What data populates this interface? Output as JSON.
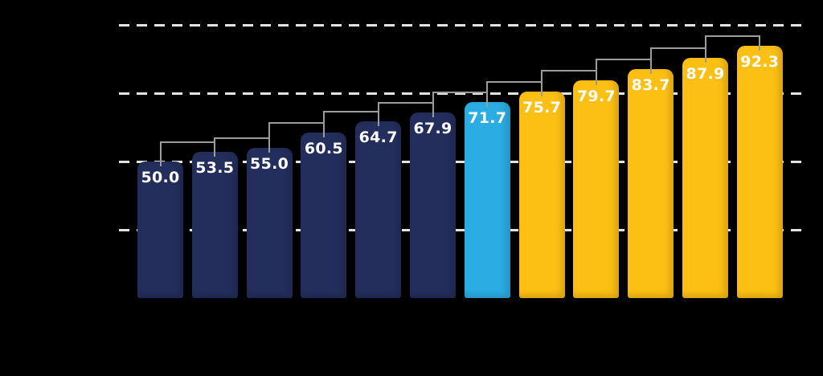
{
  "chart_data": {
    "type": "bar",
    "values": [
      50.0,
      53.5,
      55.0,
      60.5,
      64.7,
      67.9,
      71.7,
      75.7,
      79.7,
      83.7,
      87.9,
      92.3
    ],
    "value_labels": [
      "50.0",
      "53.5",
      "55.0",
      "60.5",
      "64.7",
      "67.9",
      "71.7",
      "75.7",
      "79.7",
      "83.7",
      "87.9",
      "92.3"
    ],
    "bar_colors": [
      "#232E5C",
      "#232E5C",
      "#232E5C",
      "#232E5C",
      "#232E5C",
      "#232E5C",
      "#2BACE2",
      "#FCBF13",
      "#FCBF13",
      "#FCBF13",
      "#FCBF13",
      "#FCBF13"
    ],
    "color_groups": [
      {
        "name": "dark-navy-bars",
        "color": "#232E5C",
        "bar_indices": [
          0,
          1,
          2,
          3,
          4,
          5
        ]
      },
      {
        "name": "light-blue-highlight-bar",
        "color": "#2BACE2",
        "bar_indices": [
          6
        ]
      },
      {
        "name": "gold-bars",
        "color": "#FCBF13",
        "bar_indices": [
          7,
          8,
          9,
          10,
          11
        ]
      }
    ],
    "ylim": [
      0,
      100
    ],
    "gridline_values": [
      25,
      50,
      75,
      100
    ],
    "grid_style": "dashed",
    "gridline_color": "#E3E3E3",
    "connector_color": "#9C9C9C",
    "label_color": "#FFFFFF",
    "background_color": "#000000",
    "brackets": [
      [
        0,
        1
      ],
      [
        1,
        2
      ],
      [
        2,
        3
      ],
      [
        3,
        4
      ],
      [
        4,
        5
      ],
      [
        5,
        6
      ],
      [
        6,
        7
      ],
      [
        7,
        8
      ],
      [
        8,
        9
      ],
      [
        9,
        10
      ],
      [
        10,
        11
      ]
    ],
    "legend": "none",
    "axis_labels_visible": false
  }
}
